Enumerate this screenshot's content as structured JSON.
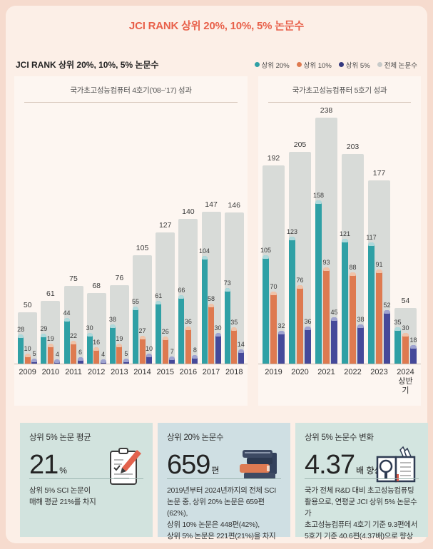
{
  "page_title": "JCI RANK 상위 20%, 10%, 5% 논문수",
  "chart": {
    "subtitle": "JCI RANK 상위 20%, 10%, 5% 논문수",
    "legend": [
      {
        "label": "상위 20%",
        "color": "#2fa0a5"
      },
      {
        "label": "상위 10%",
        "color": "#de7a50"
      },
      {
        "label": "상위 5%",
        "color": "#35397f"
      },
      {
        "label": "전체 논문수",
        "color": "#c7cac9"
      }
    ]
  },
  "chart_data": {
    "type": "bar",
    "title": "JCI RANK 상위 20%, 10%, 5% 논문수",
    "ylim": [
      0,
      250
    ],
    "grid": false,
    "legend_position": "top-right",
    "sections": [
      {
        "label": "국가초고성능컴퓨터 4호기('08~'17) 성과",
        "categories": [
          "2009",
          "2010",
          "2011",
          "2012",
          "2013",
          "2014",
          "2015",
          "2016",
          "2017",
          "2018"
        ],
        "series": [
          {
            "name": "전체 논문수",
            "color": "#d8dbd8",
            "cap": "#d8dbd8",
            "values": [
              50,
              61,
              75,
              68,
              76,
              105,
              127,
              140,
              147,
              146
            ]
          },
          {
            "name": "상위 20%",
            "color": "#2fa0a5",
            "cap": "#aed9db",
            "values": [
              28,
              29,
              44,
              30,
              38,
              55,
              61,
              66,
              104,
              73
            ]
          },
          {
            "name": "상위 10%",
            "color": "#de7a50",
            "cap": "#f0c3a9",
            "values": [
              10,
              19,
              22,
              16,
              19,
              27,
              26,
              36,
              58,
              35
            ]
          },
          {
            "name": "상위 5%",
            "color": "#45499a",
            "cap": "#9fa3d0",
            "values": [
              5,
              4,
              6,
              4,
              5,
              10,
              7,
              8,
              30,
              14
            ]
          }
        ]
      },
      {
        "label": "국가초고성능컴퓨터 5호기 성과",
        "categories": [
          "2019",
          "2020",
          "2021",
          "2022",
          "2023",
          "2024\n상반기"
        ],
        "series": [
          {
            "name": "전체 논문수",
            "color": "#d8dbd8",
            "cap": "#d8dbd8",
            "values": [
              192,
              205,
              238,
              203,
              177,
              54
            ]
          },
          {
            "name": "상위 20%",
            "color": "#2fa0a5",
            "cap": "#aed9db",
            "values": [
              105,
              123,
              158,
              121,
              117,
              35
            ]
          },
          {
            "name": "상위 10%",
            "color": "#de7a50",
            "cap": "#f0c3a9",
            "values": [
              70,
              76,
              93,
              88,
              91,
              30
            ]
          },
          {
            "name": "상위 5%",
            "color": "#45499a",
            "cap": "#9fa3d0",
            "values": [
              32,
              36,
              45,
              38,
              52,
              18
            ]
          }
        ]
      }
    ]
  },
  "cards": [
    {
      "title": "상위 5% 논문 평균",
      "value": "21",
      "unit": "%",
      "icon": "clipboard-pencil-icon",
      "body": "상위 5% SCI 논문이\n매해 평균 21%를 차지"
    },
    {
      "title": "상위 20% 논문수",
      "value": "659",
      "unit": "편",
      "icon": "books-stack-icon",
      "body": "2019년부터 2024년까지의 전체 SCI\n논문 중, 상위 20% 논문은 659편(62%),\n상위 10% 논문은 448편(42%),\n상위 5% 논문은 221편(21%)을 차지"
    },
    {
      "title": "상위 5% 논문수 변화",
      "value": "4.37",
      "unit": "배 향상",
      "icon": "book-magnifier-icon",
      "body": "국가 전체 R&D 대비 초고성능컴퓨팅\n활용으로, 연평균 JCI 상위 5% 논문수가\n초고성능컴퓨터 4호기 기준 9.3편에서\n5호기 기준 40.6편(4.37배)으로 향상"
    }
  ]
}
